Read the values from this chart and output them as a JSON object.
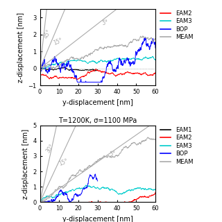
{
  "top_panel": {
    "title": "",
    "xlabel": "y-displacement [nm]",
    "ylabel": "z-displacement [nm]",
    "xlim": [
      0,
      60
    ],
    "ylim": [
      -1,
      3.5
    ],
    "yticks": [
      -1,
      0,
      1,
      2,
      3
    ],
    "xticks": [
      0,
      10,
      20,
      30,
      40,
      50,
      60
    ],
    "legend": [
      "EAM2",
      "EAM3",
      "BOP",
      "MEAM"
    ],
    "legend_colors": [
      "#ff0000",
      "#00cccc",
      "#0000ff",
      "#aaaaaa"
    ]
  },
  "bottom_panel": {
    "title": "T=1200K, σ=1100 MPa",
    "xlabel": "y-displacement [nm]",
    "ylabel": "z-displacement [nm]",
    "xlim": [
      0,
      60
    ],
    "ylim": [
      0,
      5
    ],
    "yticks": [
      0,
      1,
      2,
      3,
      4,
      5
    ],
    "xticks": [
      0,
      10,
      20,
      30,
      40,
      50,
      60
    ],
    "legend": [
      "EAM1",
      "EAM2",
      "EAM3",
      "BOP",
      "MEAM"
    ],
    "legend_colors": [
      "#000000",
      "#ff0000",
      "#00cccc",
      "#0000ff",
      "#aaaaaa"
    ]
  },
  "angle_color": "#aaaaaa",
  "line_width": 0.8,
  "noise_lw": 0.7
}
